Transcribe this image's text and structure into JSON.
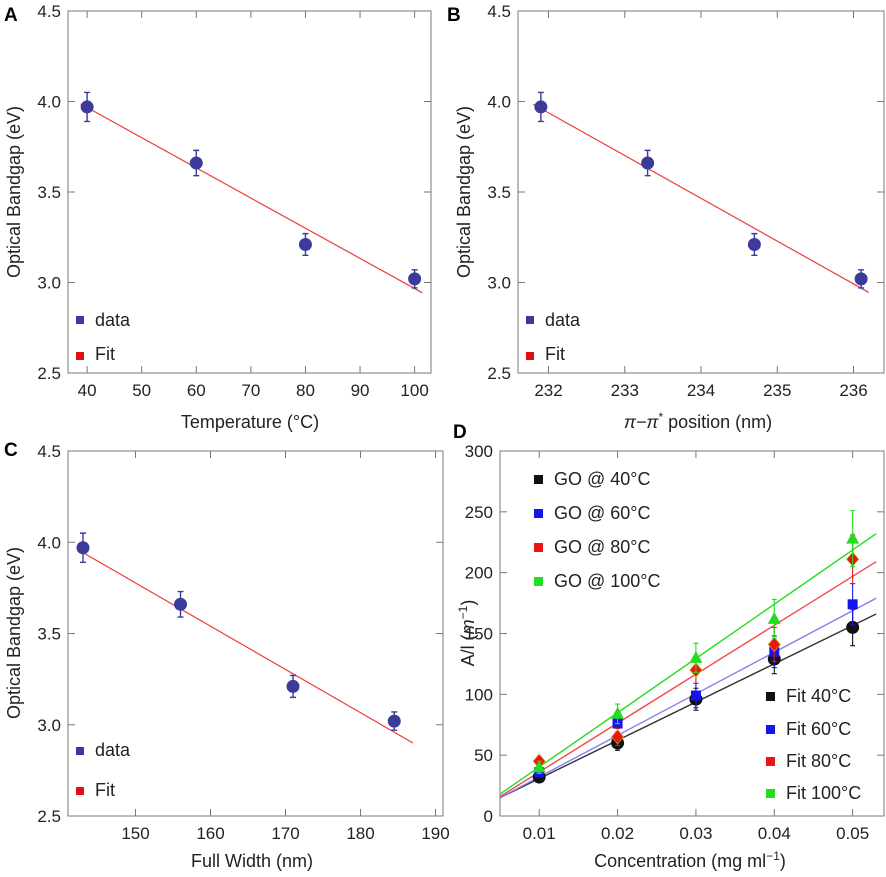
{
  "colors": {
    "data_point": "#3b3b9b",
    "fit_line": "#ee3b3b",
    "legend_data": "#3b3b9b",
    "legend_fit": "#e01010",
    "series_40": "#111111",
    "series_60": "#1515e8",
    "series_80": "#e81515",
    "series_100": "#22dd22",
    "fit_40": "#333333",
    "fit_60": "#7f7ff0",
    "fit_80": "#ef4b4b",
    "fit_100": "#22dd22"
  },
  "chart_data": [
    {
      "panel": "A",
      "type": "scatter",
      "xlabel": "Temperature (°C)",
      "ylabel": "Optical Bandgap (eV)",
      "xlim": [
        36.5,
        103
      ],
      "ylim": [
        2.5,
        4.5
      ],
      "xticks": [
        40,
        50,
        60,
        70,
        80,
        90,
        100
      ],
      "yticks": [
        2.5,
        3.0,
        3.5,
        4.0,
        4.5
      ],
      "ytick_labels": [
        "2.5",
        "3.0",
        "3.5",
        "4.0",
        "4.5"
      ],
      "x": [
        40,
        60,
        80,
        100
      ],
      "y": [
        3.97,
        3.66,
        3.21,
        3.02
      ],
      "err": [
        0.08,
        0.07,
        0.06,
        0.05
      ],
      "fit": {
        "x": [
          38.8,
          101.4
        ],
        "y": [
          3.987,
          2.943
        ]
      },
      "legend": [
        {
          "label": "data"
        },
        {
          "label": "Fit"
        }
      ]
    },
    {
      "panel": "B",
      "type": "scatter",
      "xlabel_main": "π−π",
      "xlabel_sup": "*",
      "xlabel_rest": " position (nm)",
      "ylabel": "Optical Bandgap (eV)",
      "xlim": [
        231.6,
        236.4
      ],
      "ylim": [
        2.5,
        4.5
      ],
      "xticks": [
        232,
        233,
        234,
        235,
        236
      ],
      "yticks": [
        2.5,
        3.0,
        3.5,
        4.0,
        4.5
      ],
      "ytick_labels": [
        "2.5",
        "3.0",
        "3.5",
        "4.0",
        "4.5"
      ],
      "x": [
        231.9,
        233.3,
        234.7,
        236.1
      ],
      "y": [
        3.97,
        3.66,
        3.21,
        3.02
      ],
      "err": [
        0.08,
        0.07,
        0.06,
        0.05
      ],
      "fit": {
        "x": [
          231.8,
          236.2
        ],
        "y": [
          3.985,
          2.945
        ]
      },
      "legend": [
        {
          "label": "data"
        },
        {
          "label": "Fit"
        }
      ]
    },
    {
      "panel": "C",
      "type": "scatter",
      "xlabel": "Full Width (nm)",
      "ylabel": "Optical Bandgap (eV)",
      "xlim": [
        141,
        191
      ],
      "ylim": [
        2.5,
        4.5
      ],
      "xticks": [
        150,
        160,
        170,
        180,
        190
      ],
      "yticks": [
        2.5,
        3.0,
        3.5,
        4.0,
        4.5
      ],
      "ytick_labels": [
        "2.5",
        "3.0",
        "3.5",
        "4.0",
        "4.5"
      ],
      "x": [
        143,
        156,
        171,
        184.5
      ],
      "y": [
        3.97,
        3.66,
        3.21,
        3.02
      ],
      "err": [
        0.08,
        0.07,
        0.06,
        0.05
      ],
      "fit": {
        "x": [
          142.5,
          187
        ],
        "y": [
          3.955,
          2.9
        ]
      },
      "legend": [
        {
          "label": "data"
        },
        {
          "label": "Fit"
        }
      ]
    },
    {
      "panel": "D",
      "type": "scatter",
      "xlabel_main": "Concentration (mg ml",
      "xlabel_sup": "−1",
      "xlabel_rest": ")",
      "ylabel_main": "A/l (",
      "ylabel_italic": "m",
      "ylabel_sup": "−1",
      "ylabel_rest": ")",
      "xlim": [
        0.005,
        0.054
      ],
      "ylim": [
        0,
        300
      ],
      "xticks": [
        0.01,
        0.02,
        0.03,
        0.04,
        0.05
      ],
      "xtick_labels": [
        "0.01",
        "0.02",
        "0.03",
        "0.04",
        "0.05"
      ],
      "yticks": [
        0,
        50,
        100,
        150,
        200,
        250,
        300
      ],
      "x": [
        0.01,
        0.02,
        0.03,
        0.04,
        0.05
      ],
      "series": [
        {
          "name": "GO @ 40°C",
          "marker": "circle",
          "values": [
            32,
            60,
            96,
            129,
            155
          ],
          "err": [
            4,
            6,
            9,
            12,
            15
          ]
        },
        {
          "name": "GO @ 60°C",
          "marker": "square",
          "values": [
            36,
            76,
            99,
            135,
            174
          ],
          "err": [
            4,
            7,
            10,
            13,
            17
          ]
        },
        {
          "name": "GO @ 80°C",
          "marker": "diamond",
          "values": [
            45,
            65,
            120,
            141,
            211
          ],
          "err": [
            4,
            7,
            11,
            14,
            20
          ]
        },
        {
          "name": "GO @ 100°C",
          "marker": "triangle",
          "values": [
            40,
            84,
            130,
            162,
            228
          ],
          "err": [
            5,
            8,
            12,
            16,
            23
          ]
        }
      ],
      "fits": [
        {
          "name": "Fit 40°C",
          "x": [
            0.005,
            0.053
          ],
          "y": [
            15,
            166
          ]
        },
        {
          "name": "Fit 60°C",
          "x": [
            0.005,
            0.053
          ],
          "y": [
            15,
            179
          ]
        },
        {
          "name": "Fit 80°C",
          "x": [
            0.005,
            0.053
          ],
          "y": [
            16,
            209
          ]
        },
        {
          "name": "Fit 100°C",
          "x": [
            0.005,
            0.053
          ],
          "y": [
            18,
            232
          ]
        }
      ]
    }
  ]
}
